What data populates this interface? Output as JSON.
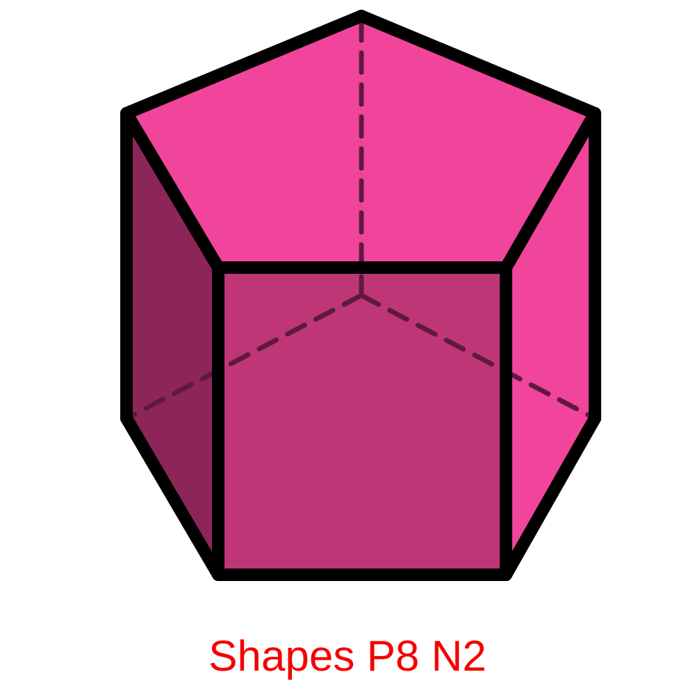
{
  "diagram": {
    "shape": "pentagonal-prism",
    "colors": {
      "top_face": "#F0459B",
      "right_face": "#F0459B",
      "front_face": "#BF3677",
      "left_face": "#8C2658",
      "outline": "#000000",
      "hidden_edges": "#5E1A3D"
    }
  },
  "caption": {
    "text": "Shapes P8 N2",
    "color": "#F50000"
  }
}
